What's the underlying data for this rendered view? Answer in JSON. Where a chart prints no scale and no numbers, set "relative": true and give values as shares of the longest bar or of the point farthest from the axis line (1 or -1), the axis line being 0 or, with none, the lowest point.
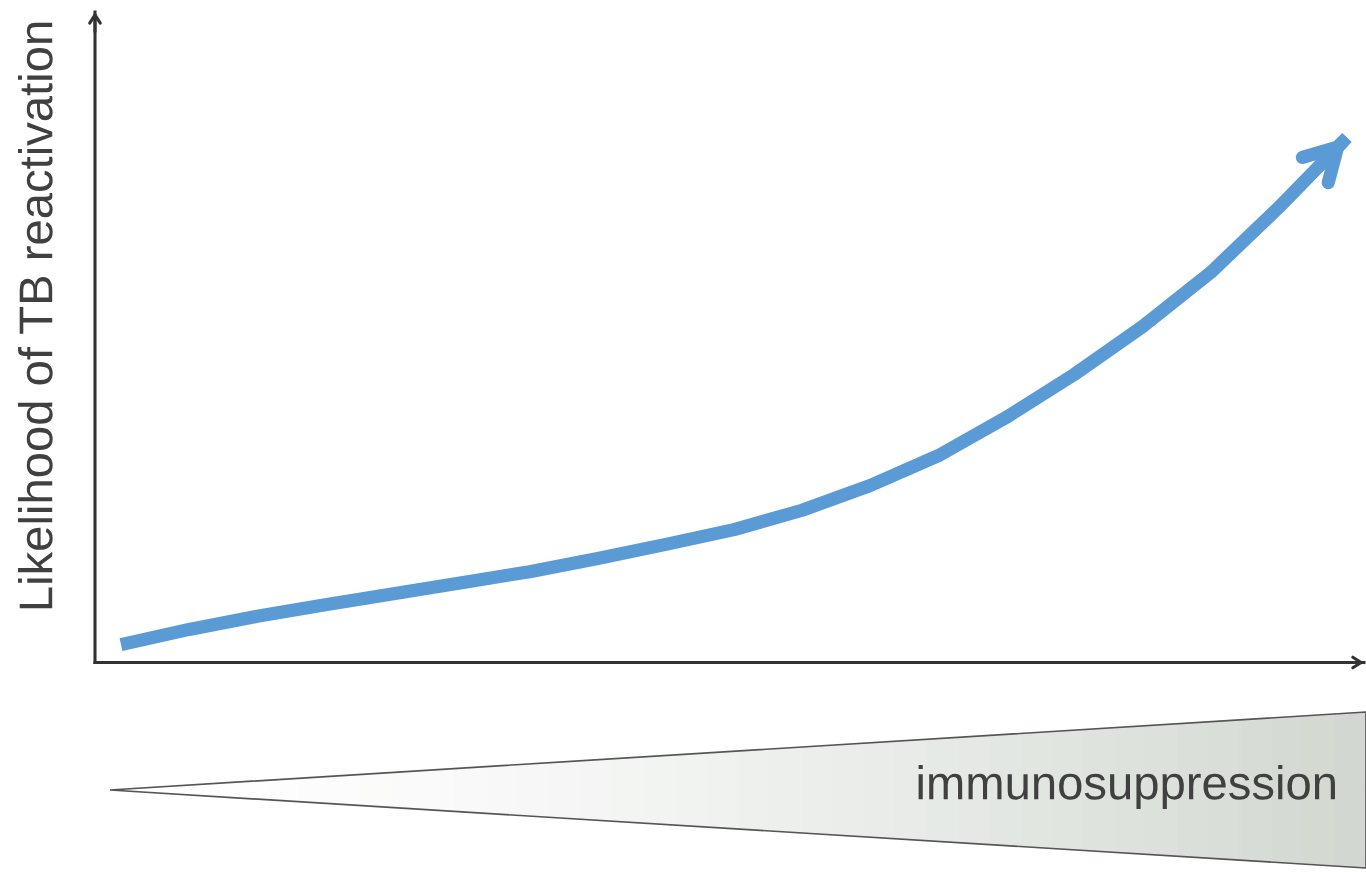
{
  "chart_data": {
    "type": "line",
    "ylabel": "Likelihood of TB reactivation",
    "xlabel": "immunosuppression",
    "categories": [
      null,
      null,
      null,
      null,
      null,
      null,
      null,
      null,
      null,
      null,
      null,
      null,
      null,
      null,
      null,
      null,
      null,
      null,
      null
    ],
    "relative": true,
    "series": [
      {
        "color": "#5b9bd5",
        "values": [
          0.034,
          0.063,
          0.088,
          0.11,
          0.131,
          0.152,
          0.173,
          0.198,
          0.225,
          0.253,
          0.29,
          0.337,
          0.394,
          0.467,
          0.549,
          0.64,
          0.743,
          0.867,
          1.0
        ]
      }
    ]
  }
}
